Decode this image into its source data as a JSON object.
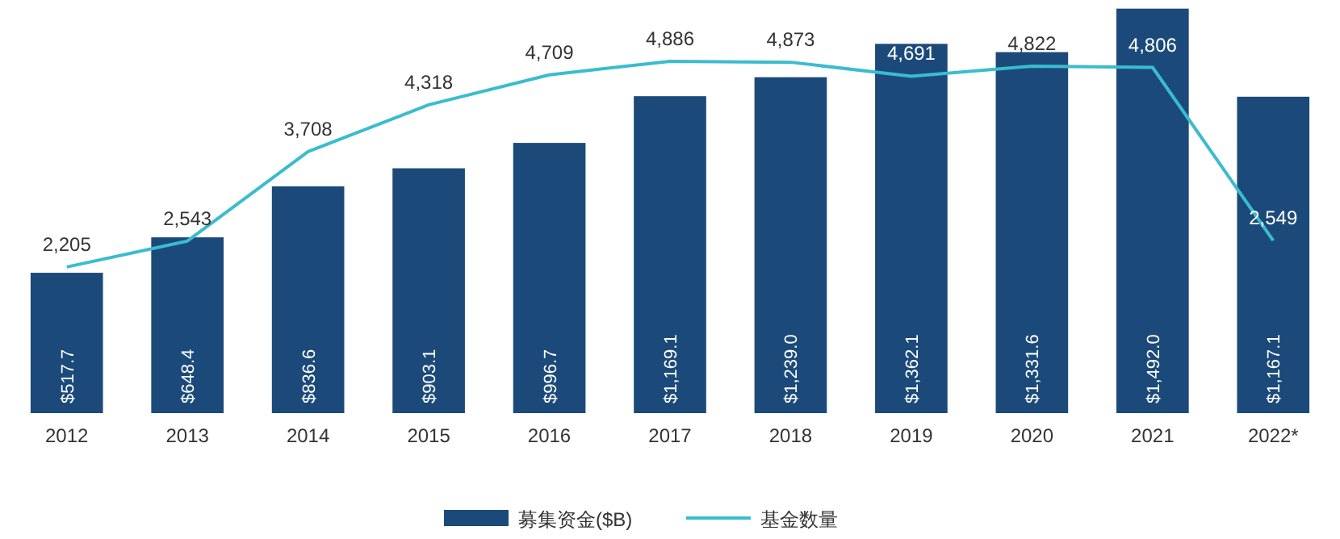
{
  "chart_data": {
    "type": "bar",
    "categories": [
      "2012",
      "2013",
      "2014",
      "2015",
      "2016",
      "2017",
      "2018",
      "2019",
      "2020",
      "2021",
      "2022*"
    ],
    "series": [
      {
        "name": "募集资金($B)",
        "color": "#1b4a7a",
        "values": [
          517.7,
          648.4,
          836.6,
          903.1,
          996.7,
          1169.1,
          1239.0,
          1362.1,
          1331.6,
          1492.0,
          1167.1
        ],
        "value_labels": [
          "$517.7",
          "$648.4",
          "$836.6",
          "$903.1",
          "$996.7",
          "$1,169.1",
          "$1,239.0",
          "$1,362.1",
          "$1,331.6",
          "$1,492.0",
          "$1,167.1"
        ]
      },
      {
        "name": "基金数量",
        "type": "line",
        "axis": "y2",
        "color": "#3bbcce",
        "values": [
          2205,
          2543,
          3708,
          4318,
          4709,
          4886,
          4873,
          4691,
          4822,
          4806,
          2549
        ],
        "value_labels": [
          "2,205",
          "2,543",
          "3,708",
          "4,318",
          "4,709",
          "4,886",
          "4,873",
          "4,691",
          "4,822",
          "4,806",
          "2,549"
        ]
      }
    ],
    "ylim": [
      0,
      1500
    ],
    "y2lim": [
      300,
      5600
    ],
    "tick_labels": "x",
    "legend": "bottom",
    "marker": "none"
  }
}
